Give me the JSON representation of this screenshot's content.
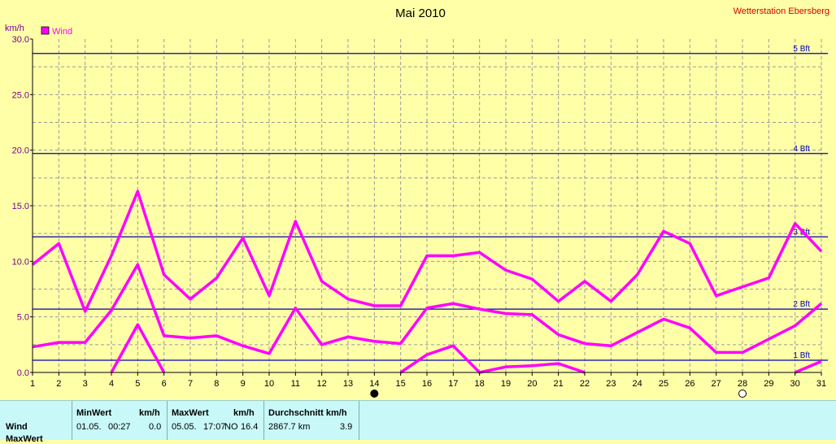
{
  "title": "Mai 2010",
  "station": "Wetterstation Ebersberg",
  "unit_label": "km/h",
  "colors": {
    "background": "#ffffa8",
    "series": "#ff00ff",
    "bft_lines": "#0000b4",
    "grid": "#999999",
    "panel": "#c8f8f8",
    "station": "#d40000"
  },
  "chart_data": {
    "type": "line",
    "title": "Mai 2010",
    "ylabel": "km/h",
    "ylim": [
      0,
      30
    ],
    "xlim": [
      1,
      31
    ],
    "yticks": [
      "0.0",
      "5.0",
      "10.0",
      "15.0",
      "20.0",
      "25.0",
      "30.0"
    ],
    "x": [
      1,
      2,
      3,
      4,
      5,
      6,
      7,
      8,
      9,
      10,
      11,
      12,
      13,
      14,
      15,
      16,
      17,
      18,
      19,
      20,
      21,
      22,
      23,
      24,
      25,
      26,
      27,
      28,
      29,
      30,
      31
    ],
    "grid": true,
    "legend": {
      "label": "Wind",
      "position": "top-left"
    },
    "series": [
      {
        "name": "Wind",
        "role": "max",
        "values": [
          9.7,
          11.6,
          5.5,
          10.5,
          16.3,
          8.8,
          6.6,
          8.5,
          12.1,
          6.9,
          13.6,
          8.2,
          6.6,
          6.0,
          6.0,
          10.5,
          10.5,
          10.8,
          9.2,
          8.4,
          6.4,
          8.2,
          6.4,
          8.8,
          12.7,
          11.6,
          6.9,
          7.7,
          8.5,
          13.4,
          10.9
        ]
      },
      {
        "name": "Wind",
        "role": "avg",
        "values": [
          2.3,
          2.7,
          2.7,
          5.6,
          9.7,
          3.3,
          3.1,
          3.3,
          2.4,
          1.7,
          5.8,
          2.5,
          3.2,
          2.8,
          2.6,
          5.8,
          6.2,
          5.7,
          5.3,
          5.2,
          3.4,
          2.6,
          2.4,
          3.6,
          4.8,
          4.0,
          1.8,
          1.8,
          3.0,
          4.2,
          6.2
        ]
      },
      {
        "name": "Wind",
        "role": "min",
        "values": [
          null,
          null,
          null,
          0.0,
          4.3,
          0.0,
          null,
          null,
          null,
          null,
          null,
          null,
          null,
          null,
          0.0,
          1.6,
          2.4,
          0.0,
          0.5,
          0.6,
          0.8,
          0.0,
          null,
          null,
          null,
          null,
          null,
          null,
          null,
          0.0,
          1.0
        ]
      }
    ],
    "reference_lines": [
      {
        "label": "1 Bft",
        "value": 1.1
      },
      {
        "label": "2 Bft",
        "value": 5.7
      },
      {
        "label": "3 Bft",
        "value": 12.2
      },
      {
        "label": "4 Bft",
        "value": 19.7
      },
      {
        "label": "5 Bft",
        "value": 28.7
      }
    ],
    "moon_markers": [
      {
        "day": 14,
        "phase": "new"
      },
      {
        "day": 28,
        "phase": "full"
      }
    ]
  },
  "stats": {
    "row_label": "Wind",
    "row2_label_partial": "MaxWert",
    "headers": {
      "min": "MinWert",
      "min_unit": "km/h",
      "max": "MaxWert",
      "max_unit": "km/h",
      "avg": "Durchschnitt km/h"
    },
    "min_date": "01.05.",
    "min_time": "00:27",
    "min_value": "0.0",
    "max_date": "05.05.",
    "max_time": "17:07",
    "max_dir": "NO",
    "max_value": "16.4",
    "avg_distance": "2867.7 km",
    "avg_value": "3.9"
  }
}
